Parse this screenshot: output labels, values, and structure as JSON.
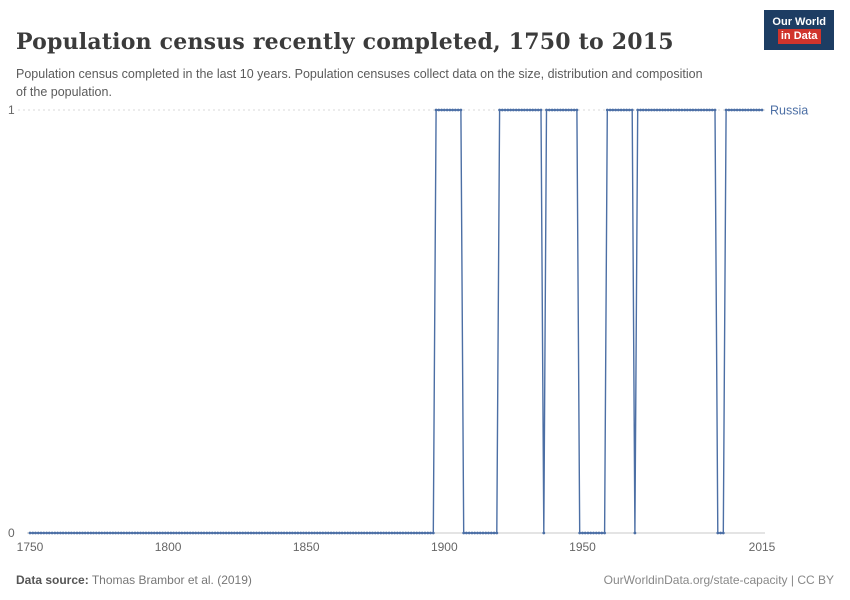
{
  "header": {
    "title": "Population census recently completed, 1750 to 2015",
    "subtitle": "Population census completed in the last 10 years. Population censuses collect data on the size, distribution and composition of the population.",
    "logo": {
      "line1": "Our World",
      "line2": "in Data",
      "bg_color": "#1d3d63",
      "accent_color": "#d0342c"
    }
  },
  "chart_data": {
    "type": "line",
    "title": "Population census recently completed, 1750 to 2015",
    "xlabel": "",
    "ylabel": "",
    "x_range": [
      1750,
      2015
    ],
    "ylim": [
      0,
      1
    ],
    "x_ticks": [
      1750,
      1800,
      1850,
      1900,
      1950,
      2015
    ],
    "y_ticks": [
      0,
      1
    ],
    "grid": "dashed gridline at y=1, solid axis line at y=0",
    "legend_position": "label at right end of line",
    "series": [
      {
        "name": "Russia",
        "color": "#4c6fa5",
        "unit": "binary (1 = census completed in last 10 years, 0 = not)",
        "segments": [
          {
            "start": 1750,
            "end": 1896,
            "value": 0
          },
          {
            "start": 1897,
            "end": 1906,
            "value": 1
          },
          {
            "start": 1907,
            "end": 1919,
            "value": 0
          },
          {
            "start": 1920,
            "end": 1935,
            "value": 1
          },
          {
            "start": 1936,
            "end": 1936,
            "value": 0
          },
          {
            "start": 1937,
            "end": 1948,
            "value": 1
          },
          {
            "start": 1949,
            "end": 1958,
            "value": 0
          },
          {
            "start": 1959,
            "end": 1968,
            "value": 1
          },
          {
            "start": 1969,
            "end": 1969,
            "value": 0
          },
          {
            "start": 1970,
            "end": 1998,
            "value": 1
          },
          {
            "start": 1999,
            "end": 2001,
            "value": 0
          },
          {
            "start": 2002,
            "end": 2015,
            "value": 1
          }
        ]
      }
    ]
  },
  "footer": {
    "source_label": "Data source:",
    "source_value": "Thomas Brambor et al. (2019)",
    "credit": "OurWorldinData.org/state-capacity | CC BY"
  }
}
